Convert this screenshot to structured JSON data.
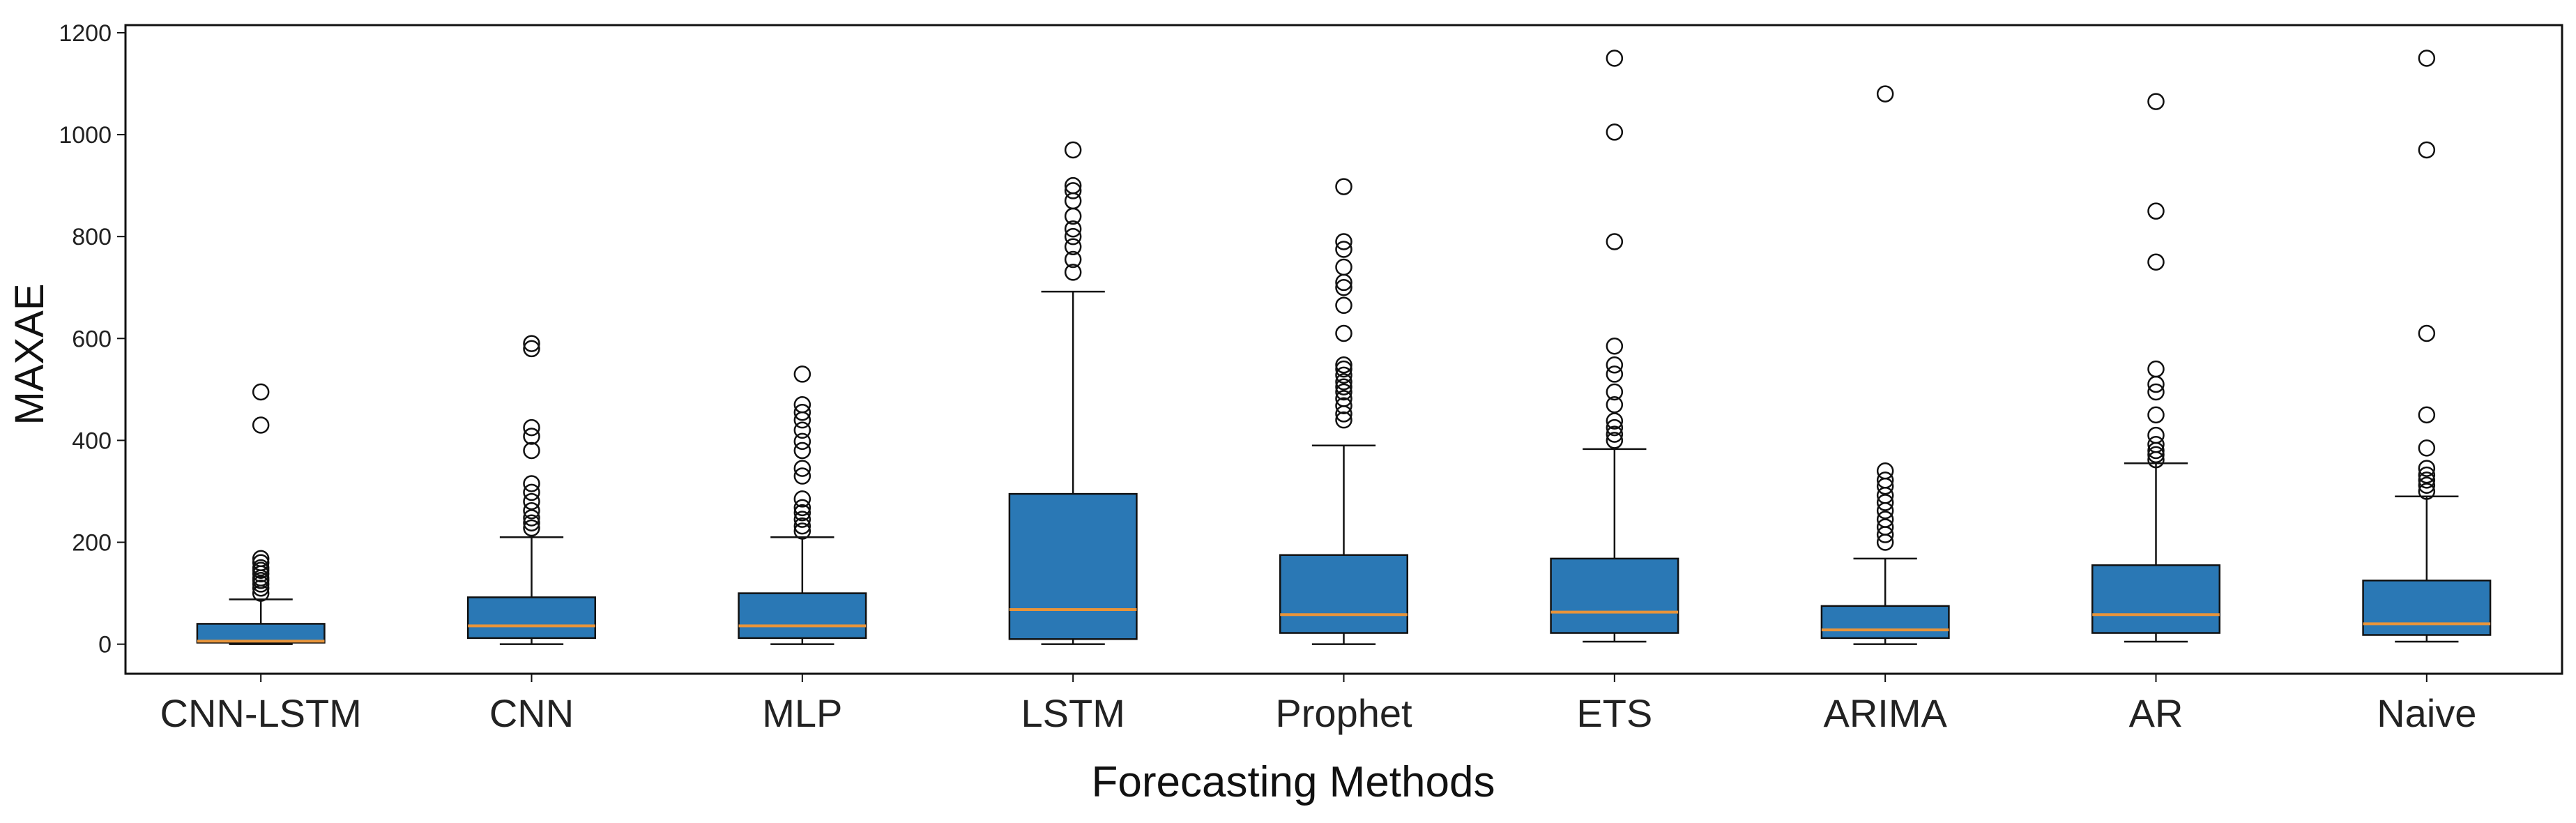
{
  "chart_data": {
    "type": "boxplot",
    "title": "",
    "xlabel": "Forecasting Methods",
    "ylabel": "MAXAE",
    "ylim": [
      -58,
      1215
    ],
    "yticks": [
      0,
      200,
      400,
      600,
      800,
      1000,
      1200
    ],
    "categories": [
      "CNN-LSTM",
      "CNN",
      "MLP",
      "LSTM",
      "Prophet",
      "ETS",
      "ARIMA",
      "AR",
      "Naive"
    ],
    "colors": {
      "box_fill": "#2a78b5",
      "median": "#e8943a",
      "edge": "#111111"
    },
    "boxes": [
      {
        "name": "CNN-LSTM",
        "whisker_low": 0,
        "q1": 3,
        "median": 6,
        "q3": 40,
        "whisker_high": 88,
        "outliers": [
          100,
          110,
          118,
          125,
          130,
          138,
          145,
          150,
          160,
          168,
          430,
          495
        ]
      },
      {
        "name": "CNN",
        "whisker_low": 0,
        "q1": 12,
        "median": 36,
        "q3": 92,
        "whisker_high": 210,
        "outliers": [
          228,
          238,
          248,
          262,
          280,
          298,
          315,
          380,
          408,
          425,
          580,
          590
        ]
      },
      {
        "name": "MLP",
        "whisker_low": 0,
        "q1": 12,
        "median": 36,
        "q3": 100,
        "whisker_high": 210,
        "outliers": [
          222,
          232,
          245,
          258,
          268,
          285,
          330,
          345,
          380,
          398,
          420,
          440,
          455,
          470,
          530
        ]
      },
      {
        "name": "LSTM",
        "whisker_low": 0,
        "q1": 10,
        "median": 68,
        "q3": 295,
        "whisker_high": 692,
        "outliers": [
          730,
          755,
          780,
          800,
          815,
          840,
          870,
          890,
          900,
          970
        ]
      },
      {
        "name": "Prophet",
        "whisker_low": 0,
        "q1": 22,
        "median": 58,
        "q3": 175,
        "whisker_high": 390,
        "outliers": [
          440,
          452,
          468,
          482,
          495,
          505,
          515,
          528,
          540,
          548,
          610,
          665,
          700,
          710,
          740,
          775,
          790,
          898
        ]
      },
      {
        "name": "ETS",
        "whisker_low": 5,
        "q1": 22,
        "median": 63,
        "q3": 168,
        "whisker_high": 383,
        "outliers": [
          400,
          412,
          425,
          438,
          470,
          495,
          530,
          548,
          585,
          790,
          1005,
          1150
        ]
      },
      {
        "name": "ARIMA",
        "whisker_low": 0,
        "q1": 12,
        "median": 28,
        "q3": 75,
        "whisker_high": 168,
        "outliers": [
          200,
          215,
          230,
          245,
          262,
          278,
          292,
          310,
          322,
          340,
          1080
        ]
      },
      {
        "name": "AR",
        "whisker_low": 5,
        "q1": 22,
        "median": 58,
        "q3": 155,
        "whisker_high": 355,
        "outliers": [
          362,
          372,
          380,
          392,
          410,
          450,
          495,
          510,
          540,
          750,
          850,
          1065
        ]
      },
      {
        "name": "Naive",
        "whisker_low": 5,
        "q1": 18,
        "median": 40,
        "q3": 125,
        "whisker_high": 290,
        "outliers": [
          300,
          312,
          322,
          332,
          345,
          385,
          450,
          610,
          970,
          1150
        ]
      }
    ]
  }
}
